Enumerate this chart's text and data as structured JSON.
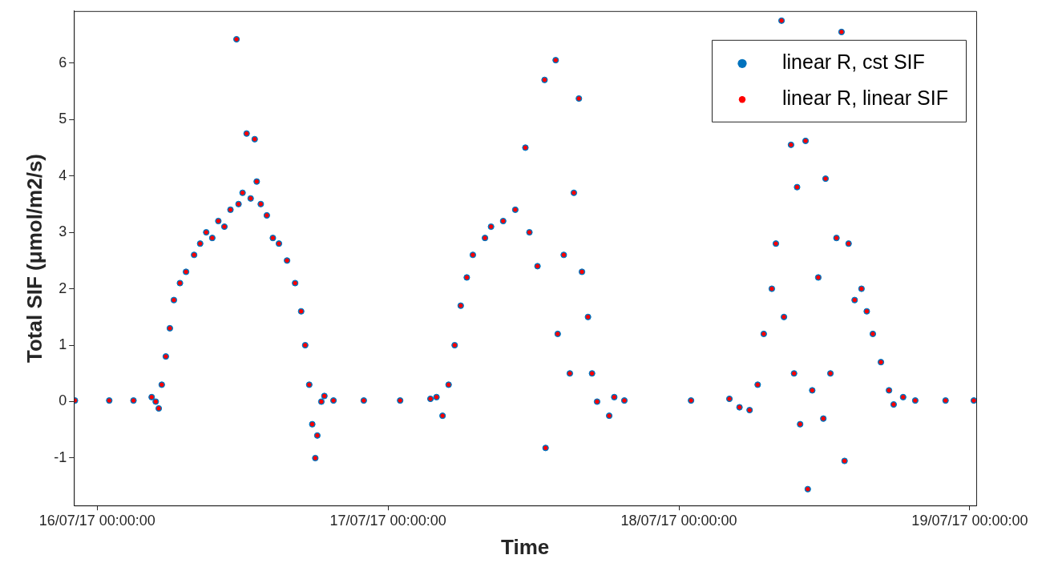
{
  "chart_data": {
    "type": "scatter",
    "xlabel": "Time",
    "ylabel": "Total SIF (μmol/m2/s)",
    "x": [
      "--07-15T22:10",
      "--07-16T01:00",
      "--07-16T03:00",
      "--07-16T04:30",
      "--07-16T04:50",
      "--07-16T05:05",
      "--07-16T05:20",
      "--07-16T05:40",
      "--07-16T06:00",
      "--07-16T06:20",
      "--07-16T06:50",
      "--07-16T07:20",
      "--07-16T08:00",
      "--07-16T08:30",
      "--07-16T09:00",
      "--07-16T09:30",
      "--07-16T10:00",
      "--07-16T10:30",
      "--07-16T11:00",
      "--07-16T11:30",
      "--07-16T11:40",
      "--07-16T12:00",
      "--07-16T12:20",
      "--07-16T12:40",
      "--07-16T13:00",
      "--07-16T13:10",
      "--07-16T13:30",
      "--07-16T14:00",
      "--07-16T14:30",
      "--07-16T15:00",
      "--07-16T15:40",
      "--07-16T16:20",
      "--07-16T16:50",
      "--07-16T17:10",
      "--07-16T17:30",
      "--07-16T17:45",
      "--07-16T18:00",
      "--07-16T18:10",
      "--07-16T18:30",
      "--07-16T18:45",
      "--07-16T19:30",
      "--07-16T22:00",
      "--07-17T01:00",
      "--07-17T03:30",
      "--07-17T04:00",
      "--07-17T04:30",
      "--07-17T05:00",
      "--07-17T05:30",
      "--07-17T06:00",
      "--07-17T06:30",
      "--07-17T07:00",
      "--07-17T08:00",
      "--07-17T08:30",
      "--07-17T09:30",
      "--07-17T10:30",
      "--07-17T11:20",
      "--07-17T11:40",
      "--07-17T12:20",
      "--07-17T12:55",
      "--07-17T13:00",
      "--07-17T13:50",
      "--07-17T14:00",
      "--07-17T14:30",
      "--07-17T15:00",
      "--07-17T15:20",
      "--07-17T15:45",
      "--07-17T16:00",
      "--07-17T16:30",
      "--07-17T16:50",
      "--07-17T17:15",
      "--07-17T18:15",
      "--07-17T18:40",
      "--07-17T19:30",
      "--07-18T01:00",
      "--07-18T04:10",
      "--07-18T05:00",
      "--07-18T05:50",
      "--07-18T06:30",
      "--07-18T07:00",
      "--07-18T07:40",
      "--07-18T08:00",
      "--07-18T08:28",
      "--07-18T08:40",
      "--07-18T09:15",
      "--07-18T09:30",
      "--07-18T09:45",
      "--07-18T10:00",
      "--07-18T10:27",
      "--07-18T10:38",
      "--07-18T11:00",
      "--07-18T11:30",
      "--07-18T11:55",
      "--07-18T12:06",
      "--07-18T12:30",
      "--07-18T13:00",
      "--07-18T13:25",
      "--07-18T13:40",
      "--07-18T14:00",
      "--07-18T14:30",
      "--07-18T15:04",
      "--07-18T15:30",
      "--07-18T16:00",
      "--07-18T16:40",
      "--07-18T17:20",
      "--07-18T17:43",
      "--07-18T18:30",
      "--07-18T19:30",
      "--07-18T22:00",
      "--07-19T00:20"
    ],
    "series": [
      {
        "name": "linear R, cst SIF",
        "color": "#0072bd",
        "values": [
          0.02,
          0.02,
          0.02,
          0.08,
          0.0,
          -0.12,
          0.3,
          0.8,
          1.3,
          1.8,
          2.1,
          2.3,
          2.6,
          2.8,
          3.0,
          2.9,
          3.2,
          3.1,
          3.4,
          6.42,
          3.5,
          3.7,
          4.75,
          3.6,
          4.65,
          3.9,
          3.5,
          3.3,
          2.9,
          2.8,
          2.5,
          2.1,
          1.6,
          1.0,
          0.3,
          -0.4,
          -1.0,
          -0.6,
          0.0,
          0.1,
          0.02,
          0.02,
          0.02,
          0.05,
          0.08,
          -0.25,
          0.3,
          1.0,
          1.7,
          2.2,
          2.6,
          2.9,
          3.1,
          3.2,
          3.4,
          4.5,
          3.0,
          2.4,
          5.7,
          -0.82,
          6.05,
          1.2,
          2.6,
          0.5,
          3.7,
          5.37,
          2.3,
          1.5,
          0.5,
          0.0,
          -0.25,
          0.08,
          0.02,
          0.02,
          0.05,
          -0.1,
          -0.15,
          0.3,
          1.2,
          2.0,
          2.8,
          6.75,
          1.5,
          4.55,
          0.5,
          3.8,
          -0.4,
          4.62,
          -1.55,
          0.2,
          2.2,
          -0.3,
          3.95,
          0.5,
          2.9,
          6.55,
          -1.05,
          2.8,
          1.8,
          2.0,
          1.6,
          1.2,
          0.7,
          0.2,
          -0.05,
          0.08,
          0.02,
          0.02,
          0.02
        ]
      },
      {
        "name": "linear R, linear SIF",
        "color": "#ff0000",
        "values": [
          0.02,
          0.02,
          0.02,
          0.08,
          0.0,
          -0.12,
          0.3,
          0.8,
          1.3,
          1.8,
          2.1,
          2.3,
          2.6,
          2.8,
          3.0,
          2.9,
          3.2,
          3.1,
          3.4,
          6.42,
          3.5,
          3.7,
          4.75,
          3.6,
          4.65,
          3.9,
          3.5,
          3.3,
          2.9,
          2.8,
          2.5,
          2.1,
          1.6,
          1.0,
          0.3,
          -0.4,
          -1.0,
          -0.6,
          0.0,
          0.1,
          0.02,
          0.02,
          0.02,
          0.05,
          0.08,
          -0.25,
          0.3,
          1.0,
          1.7,
          2.2,
          2.6,
          2.9,
          3.1,
          3.2,
          3.4,
          4.5,
          3.0,
          2.4,
          5.7,
          -0.82,
          6.05,
          1.2,
          2.6,
          0.5,
          3.7,
          5.37,
          2.3,
          1.5,
          0.5,
          0.0,
          -0.25,
          0.08,
          0.02,
          0.02,
          0.05,
          -0.1,
          -0.15,
          0.3,
          1.2,
          2.0,
          2.8,
          6.75,
          1.5,
          4.55,
          0.5,
          3.8,
          -0.4,
          4.62,
          -1.55,
          0.2,
          2.2,
          -0.3,
          3.95,
          0.5,
          2.9,
          6.55,
          -1.05,
          2.8,
          1.8,
          2.0,
          1.6,
          1.2,
          0.7,
          0.2,
          -0.05,
          0.08,
          0.02,
          0.02,
          0.02
        ]
      }
    ],
    "xlim": [
      "--07-15T22:05",
      "--07-19T00:32"
    ],
    "xticks": [
      {
        "value": "--07-16T00:00",
        "label": "16/07/17 00:00:00"
      },
      {
        "value": "--07-17T00:00",
        "label": "17/07/17 00:00:00"
      },
      {
        "value": "--07-18T00:00",
        "label": "18/07/17 00:00:00"
      },
      {
        "value": "--07-19T00:00",
        "label": "19/07/17 00:00:00"
      }
    ],
    "ylim": [
      -1.84,
      6.92
    ],
    "yticks": [
      -1,
      0,
      1,
      2,
      3,
      4,
      5,
      6
    ],
    "grid": false,
    "legend": "top right",
    "marker": "circle"
  }
}
